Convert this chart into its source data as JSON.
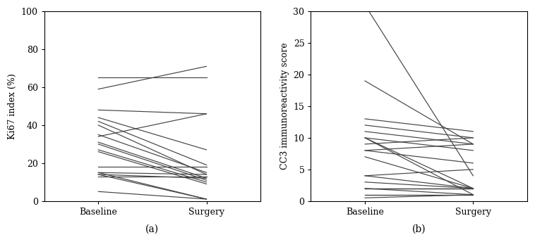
{
  "panel_a": {
    "ylabel": "Ki67 index (%)",
    "xlabel_a": "(a)",
    "ylim": [
      0,
      100
    ],
    "yticks": [
      0,
      20,
      40,
      60,
      80,
      100
    ],
    "xtick_labels": [
      "Baseline",
      "Surgery"
    ],
    "lines": [
      [
        65,
        65
      ],
      [
        59,
        71
      ],
      [
        48,
        46
      ],
      [
        44,
        27
      ],
      [
        42,
        19
      ],
      [
        40,
        14
      ],
      [
        35,
        15
      ],
      [
        34,
        46
      ],
      [
        31,
        12
      ],
      [
        30,
        11
      ],
      [
        27,
        10
      ],
      [
        26,
        9
      ],
      [
        18,
        18
      ],
      [
        15,
        14
      ],
      [
        15,
        1
      ],
      [
        14,
        1
      ],
      [
        14,
        12
      ],
      [
        13,
        13
      ],
      [
        5,
        1
      ]
    ]
  },
  "panel_b": {
    "ylabel": "CC3 immunoreactivity score",
    "xlabel_b": "(b)",
    "ylim": [
      0,
      30
    ],
    "yticks": [
      0,
      5,
      10,
      15,
      20,
      25,
      30
    ],
    "xtick_labels": [
      "Baseline",
      "Surgery"
    ],
    "lines": [
      [
        31,
        4
      ],
      [
        19,
        9
      ],
      [
        13,
        11
      ],
      [
        12,
        10
      ],
      [
        11,
        9
      ],
      [
        10,
        8
      ],
      [
        10,
        2
      ],
      [
        10,
        1
      ],
      [
        9,
        10
      ],
      [
        8,
        9
      ],
      [
        8,
        6
      ],
      [
        7,
        2
      ],
      [
        4,
        2
      ],
      [
        4,
        5
      ],
      [
        3,
        2
      ],
      [
        2,
        2
      ],
      [
        2,
        2
      ],
      [
        2,
        2
      ],
      [
        2,
        1
      ],
      [
        1,
        1
      ],
      [
        1,
        1
      ],
      [
        0.5,
        1
      ]
    ]
  },
  "line_color": "#444444",
  "line_width": 0.85,
  "background_color": "#ffffff",
  "font_family": "DejaVu Serif",
  "x_positions": [
    0.25,
    0.75
  ],
  "xlim": [
    0,
    1
  ]
}
